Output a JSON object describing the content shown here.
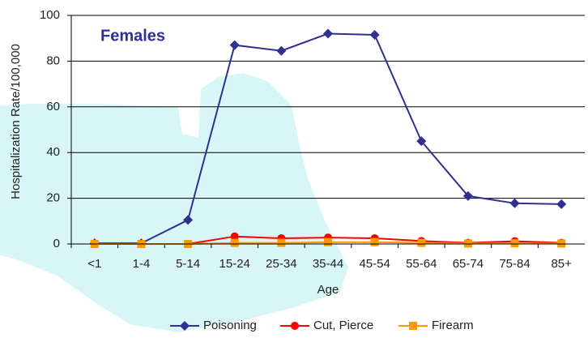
{
  "chart_data": {
    "type": "line",
    "title": "Females",
    "x_label": "Age",
    "y_label": "Hospitalization Rate/100,000",
    "categories": [
      "<1",
      "1-4",
      "5-14",
      "15-24",
      "25-34",
      "35-44",
      "45-54",
      "55-64",
      "65-74",
      "75-84",
      "85+"
    ],
    "series": [
      {
        "name": "Poisoning",
        "color": "#2e3192",
        "marker": "diamond",
        "values": [
          0.3,
          0.3,
          10.5,
          87,
          84.5,
          92,
          91.5,
          45,
          21,
          17.8,
          17.4
        ]
      },
      {
        "name": "Cut, Pierce",
        "color": "#ff0000",
        "marker": "circle",
        "values": [
          0,
          0,
          0,
          3.3,
          2.5,
          2.8,
          2.5,
          1.3,
          0.5,
          1.2,
          0.5
        ]
      },
      {
        "name": "Firearm",
        "color": "#ff9900",
        "marker": "square",
        "values": [
          0,
          0,
          0,
          0.5,
          0.5,
          0.8,
          0.8,
          0.5,
          0.2,
          0.3,
          0.2
        ]
      }
    ],
    "ylim": [
      0,
      100
    ],
    "yticks": [
      0,
      20,
      40,
      60,
      80,
      100
    ],
    "grid": true,
    "legend": "bottom"
  }
}
